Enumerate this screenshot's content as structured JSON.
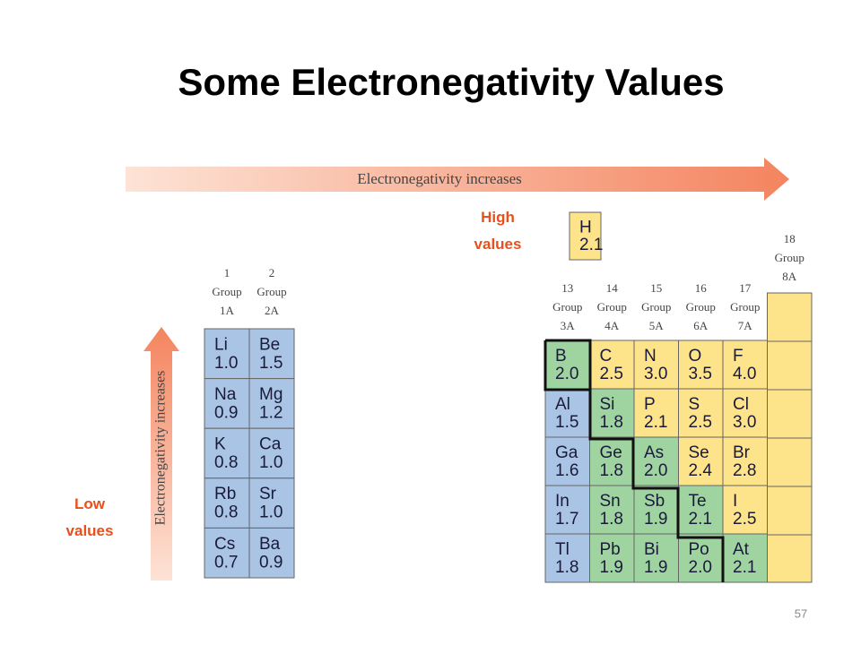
{
  "title": "Some Electronegativity Values",
  "arrow_horizontal": "Electronegativity increases",
  "arrow_vertical": "Electronegativity increases",
  "high_label": "High values",
  "low_label": "Low values",
  "page_number": "57",
  "hydrogen": {
    "symbol": "H",
    "value": "2.1",
    "color": "#fde38a"
  },
  "left_table": {
    "groups": [
      {
        "number": "1",
        "word": "Group",
        "name": "1A"
      },
      {
        "number": "2",
        "word": "Group",
        "name": "2A"
      }
    ],
    "rows": [
      [
        {
          "symbol": "Li",
          "value": "1.0",
          "color": "#a9c4e4"
        },
        {
          "symbol": "Be",
          "value": "1.5",
          "color": "#a9c4e4"
        }
      ],
      [
        {
          "symbol": "Na",
          "value": "0.9",
          "color": "#a9c4e4"
        },
        {
          "symbol": "Mg",
          "value": "1.2",
          "color": "#a9c4e4"
        }
      ],
      [
        {
          "symbol": "K",
          "value": "0.8",
          "color": "#a9c4e4"
        },
        {
          "symbol": "Ca",
          "value": "1.0",
          "color": "#a9c4e4"
        }
      ],
      [
        {
          "symbol": "Rb",
          "value": "0.8",
          "color": "#a9c4e4"
        },
        {
          "symbol": "Sr",
          "value": "1.0",
          "color": "#a9c4e4"
        }
      ],
      [
        {
          "symbol": "Cs",
          "value": "0.7",
          "color": "#a9c4e4"
        },
        {
          "symbol": "Ba",
          "value": "0.9",
          "color": "#a9c4e4"
        }
      ]
    ]
  },
  "right_table": {
    "groups": [
      {
        "number": "13",
        "word": "Group",
        "name": "3A"
      },
      {
        "number": "14",
        "word": "Group",
        "name": "4A"
      },
      {
        "number": "15",
        "word": "Group",
        "name": "5A"
      },
      {
        "number": "16",
        "word": "Group",
        "name": "6A"
      },
      {
        "number": "17",
        "word": "Group",
        "name": "7A"
      }
    ],
    "group_18": {
      "number": "18",
      "word": "Group",
      "name": "8A",
      "color": "#fde38a"
    },
    "rows": [
      [
        {
          "symbol": "B",
          "value": "2.0",
          "color": "#9fd4a0"
        },
        {
          "symbol": "C",
          "value": "2.5",
          "color": "#fde38a"
        },
        {
          "symbol": "N",
          "value": "3.0",
          "color": "#fde38a"
        },
        {
          "symbol": "O",
          "value": "3.5",
          "color": "#fde38a"
        },
        {
          "symbol": "F",
          "value": "4.0",
          "color": "#fde38a"
        }
      ],
      [
        {
          "symbol": "Al",
          "value": "1.5",
          "color": "#a9c4e4"
        },
        {
          "symbol": "Si",
          "value": "1.8",
          "color": "#9fd4a0"
        },
        {
          "symbol": "P",
          "value": "2.1",
          "color": "#fde38a"
        },
        {
          "symbol": "S",
          "value": "2.5",
          "color": "#fde38a"
        },
        {
          "symbol": "Cl",
          "value": "3.0",
          "color": "#fde38a"
        }
      ],
      [
        {
          "symbol": "Ga",
          "value": "1.6",
          "color": "#a9c4e4"
        },
        {
          "symbol": "Ge",
          "value": "1.8",
          "color": "#9fd4a0"
        },
        {
          "symbol": "As",
          "value": "2.0",
          "color": "#9fd4a0"
        },
        {
          "symbol": "Se",
          "value": "2.4",
          "color": "#fde38a"
        },
        {
          "symbol": "Br",
          "value": "2.8",
          "color": "#fde38a"
        }
      ],
      [
        {
          "symbol": "In",
          "value": "1.7",
          "color": "#a9c4e4"
        },
        {
          "symbol": "Sn",
          "value": "1.8",
          "color": "#9fd4a0"
        },
        {
          "symbol": "Sb",
          "value": "1.9",
          "color": "#9fd4a0"
        },
        {
          "symbol": "Te",
          "value": "2.1",
          "color": "#9fd4a0"
        },
        {
          "symbol": "I",
          "value": "2.5",
          "color": "#fde38a"
        }
      ],
      [
        {
          "symbol": "Tl",
          "value": "1.8",
          "color": "#a9c4e4"
        },
        {
          "symbol": "Pb",
          "value": "1.9",
          "color": "#9fd4a0"
        },
        {
          "symbol": "Bi",
          "value": "1.9",
          "color": "#9fd4a0"
        },
        {
          "symbol": "Po",
          "value": "2.0",
          "color": "#9fd4a0"
        },
        {
          "symbol": "At",
          "value": "2.1",
          "color": "#9fd4a0"
        }
      ]
    ]
  }
}
